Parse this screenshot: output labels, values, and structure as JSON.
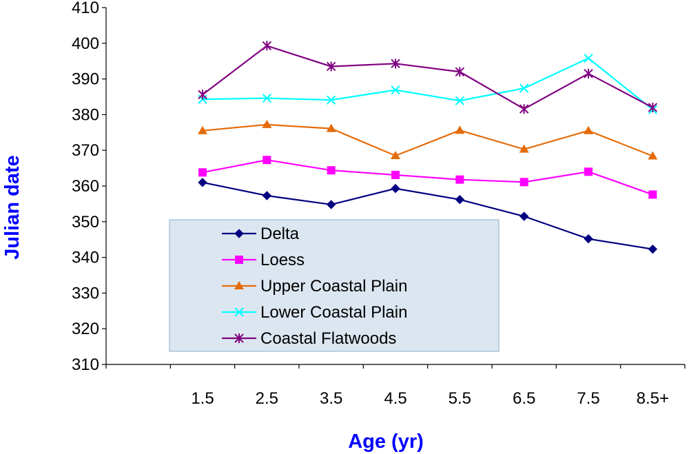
{
  "chart_data": {
    "type": "line",
    "title": "",
    "xlabel": "Age (yr)",
    "ylabel": "Julian date",
    "categories": [
      "1.5",
      "2.5",
      "3.5",
      "4.5",
      "5.5",
      "6.5",
      "7.5",
      "8.5+"
    ],
    "ylim": [
      310,
      410
    ],
    "yticks": [
      310,
      320,
      330,
      340,
      350,
      360,
      370,
      380,
      390,
      400,
      410
    ],
    "grid": false,
    "legend_position": "bottom-left",
    "series": [
      {
        "name": "Delta",
        "color": "#000080",
        "marker": "diamond",
        "values": [
          361,
          357.3,
          354.8,
          359.3,
          356.2,
          351.5,
          345.2,
          342.3
        ]
      },
      {
        "name": "Loess",
        "color": "#FF00FF",
        "marker": "square",
        "values": [
          363.8,
          367.3,
          364.4,
          363.1,
          361.8,
          361.1,
          364,
          357.6
        ]
      },
      {
        "name": "Upper Coastal Plain",
        "color": "#E46C0A",
        "marker": "triangle",
        "values": [
          375.5,
          377.2,
          376.1,
          368.5,
          375.6,
          370.3,
          375.5,
          368.4
        ]
      },
      {
        "name": "Lower Coastal Plain",
        "color": "#00FFFF",
        "marker": "x",
        "values": [
          384.3,
          384.6,
          384.1,
          386.9,
          383.9,
          387.4,
          395.8,
          381.4
        ]
      },
      {
        "name": "Coastal Flatwoods",
        "color": "#800080",
        "marker": "asterisk",
        "values": [
          385.6,
          399.3,
          393.5,
          394.3,
          392,
          381.6,
          391.5,
          382
        ]
      }
    ]
  }
}
